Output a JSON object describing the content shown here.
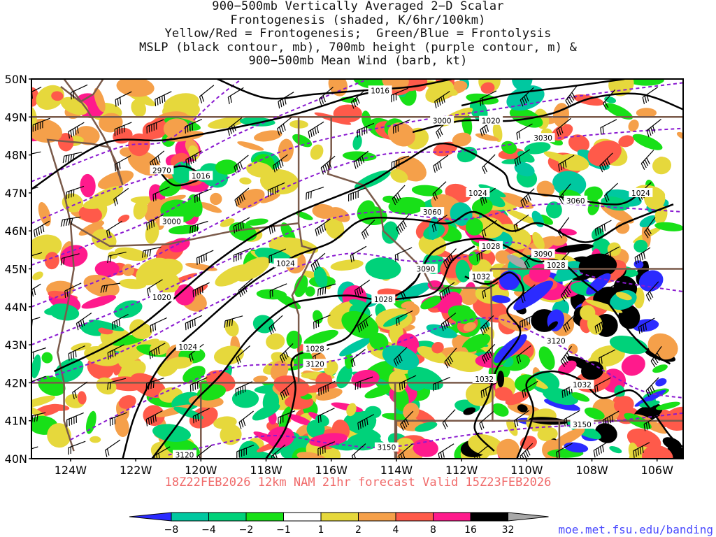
{
  "title": {
    "line1": "900−500mb Vertically Averaged 2−D Scalar",
    "line2": "Frontogenesis (shaded, K/6hr/100km)",
    "line3": "Yellow/Red = Frontogenesis;  Green/Blue = Frontolysis",
    "line4": "MSLP (black contour, mb), 700mb height (purple contour, m) &",
    "line5": "900−500mb Mean Wind (barb, kt)"
  },
  "subtitle": "18Z22FEB2026 12km NAM 21hr forecast Valid 15Z23FEB2026",
  "credit": "moe.met.fsu.edu/banding",
  "lat_labels": [
    "50N",
    "49N",
    "48N",
    "47N",
    "46N",
    "45N",
    "44N",
    "43N",
    "42N",
    "41N",
    "40N"
  ],
  "lon_labels": [
    "124W",
    "122W",
    "120W",
    "118W",
    "116W",
    "114W",
    "112W",
    "110W",
    "108W",
    "106W"
  ],
  "colorbar": {
    "labels": [
      "−8",
      "−4",
      "−2",
      "−1",
      "1",
      "2",
      "4",
      "8",
      "16",
      "32"
    ],
    "colors": [
      "#2b2bff",
      "#00c8a0",
      "#00d27a",
      "#18e018",
      "#ffffff",
      "#e6d83c",
      "#f5a04a",
      "#ff5a4a",
      "#ff1a8c",
      "#000000",
      "#a8a8a8"
    ],
    "left_arrow_color": "#2b2bff",
    "right_arrow_color": "#a8a8a8"
  },
  "mslp_labels": [
    {
      "text": "1016",
      "lon": -114.5,
      "lat": 49.7
    },
    {
      "text": "1016",
      "lon": -120.0,
      "lat": 47.45
    },
    {
      "text": "1020",
      "lon": -111.1,
      "lat": 48.9
    },
    {
      "text": "1024",
      "lon": -111.5,
      "lat": 47.0
    },
    {
      "text": "1024",
      "lon": -106.5,
      "lat": 47.0
    },
    {
      "text": "1024",
      "lon": -117.4,
      "lat": 45.15
    },
    {
      "text": "1020",
      "lon": -121.2,
      "lat": 44.25
    },
    {
      "text": "1024",
      "lon": -120.4,
      "lat": 42.95
    },
    {
      "text": "1028",
      "lon": -116.5,
      "lat": 42.9
    },
    {
      "text": "1028",
      "lon": -114.4,
      "lat": 44.2
    },
    {
      "text": "1028",
      "lon": -111.1,
      "lat": 45.6
    },
    {
      "text": "1028",
      "lon": -109.1,
      "lat": 45.1
    },
    {
      "text": "1032",
      "lon": -111.4,
      "lat": 44.8
    },
    {
      "text": "1032",
      "lon": -111.3,
      "lat": 42.1
    },
    {
      "text": "1032",
      "lon": -108.3,
      "lat": 41.95
    }
  ],
  "height_labels": [
    {
      "text": "2970",
      "lon": -121.2,
      "lat": 47.6
    },
    {
      "text": "3000",
      "lon": -120.9,
      "lat": 46.25
    },
    {
      "text": "3000",
      "lon": -112.6,
      "lat": 48.9
    },
    {
      "text": "3030",
      "lon": -109.5,
      "lat": 48.45
    },
    {
      "text": "3060",
      "lon": -112.9,
      "lat": 46.5
    },
    {
      "text": "3060",
      "lon": -108.5,
      "lat": 46.8
    },
    {
      "text": "3090",
      "lon": -113.1,
      "lat": 45.0
    },
    {
      "text": "3090",
      "lon": -109.5,
      "lat": 45.4
    },
    {
      "text": "3120",
      "lon": -109.1,
      "lat": 43.1
    },
    {
      "text": "3120",
      "lon": -116.5,
      "lat": 42.5
    },
    {
      "text": "3120",
      "lon": -120.5,
      "lat": 40.1
    },
    {
      "text": "3150",
      "lon": -114.3,
      "lat": 40.3
    },
    {
      "text": "3150",
      "lon": -108.3,
      "lat": 40.9
    }
  ]
}
